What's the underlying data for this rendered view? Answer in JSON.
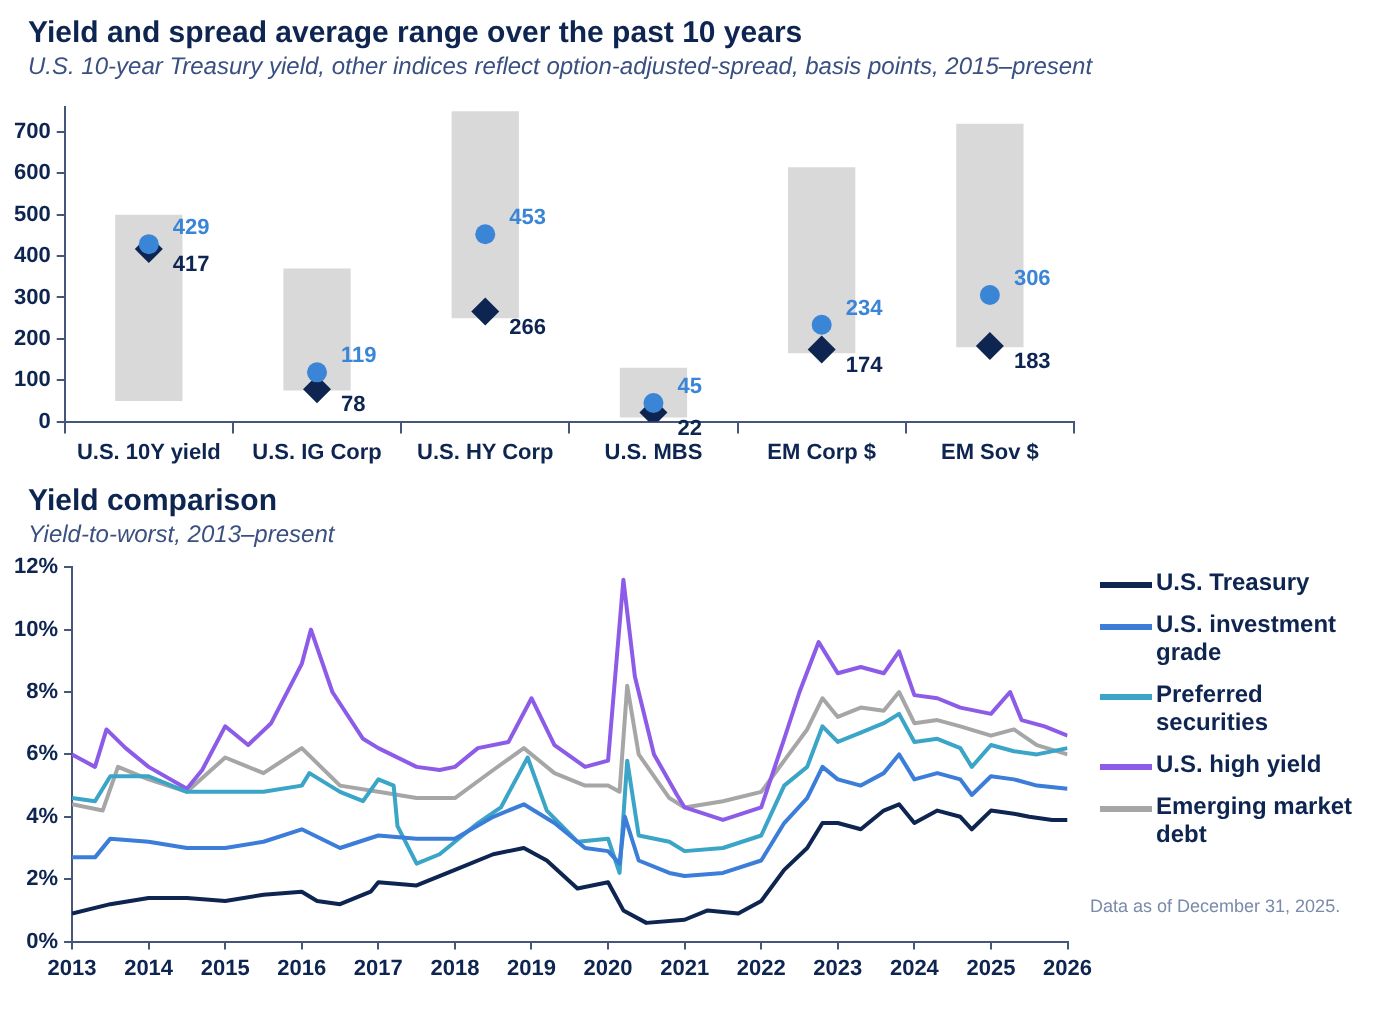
{
  "chart_data": [
    {
      "type": "bar",
      "title": "Yield and spread average range over the past 10 years",
      "subtitle": "U.S. 10-year Treasury yield, other indices reflect option-adjusted-spread, basis points, 2015–present",
      "categories": [
        "U.S. 10Y yield",
        "U.S. IG Corp",
        "U.S. HY Corp",
        "U.S. MBS",
        "EM Corp $",
        "EM Sov $"
      ],
      "ylim": [
        0,
        760
      ],
      "yticks": [
        0,
        100,
        200,
        300,
        400,
        500,
        600,
        700
      ],
      "grid": false,
      "legend": false,
      "series": [
        {
          "color": "#d9d9d9",
          "base": [
            50,
            75,
            250,
            10,
            165,
            180
          ],
          "values": [
            450,
            295,
            500,
            120,
            450,
            540
          ]
        },
        {
          "type": "scatter",
          "color": "#3a85d6",
          "marker": "circle",
          "data_labels": true,
          "x": [
            "U.S. 10Y yield",
            "U.S. IG Corp",
            "U.S. HY Corp",
            "U.S. MBS",
            "EM Corp $",
            "EM Sov $"
          ],
          "values": [
            429,
            119,
            453,
            45,
            234,
            306
          ]
        },
        {
          "type": "scatter",
          "color": "#0d2550",
          "marker": "diamond",
          "data_labels": true,
          "x": [
            "U.S. 10Y yield",
            "U.S. IG Corp",
            "U.S. HY Corp",
            "U.S. MBS",
            "EM Corp $",
            "EM Sov $"
          ],
          "values": [
            417,
            78,
            266,
            22,
            174,
            183
          ]
        }
      ]
    },
    {
      "type": "line",
      "title": "Yield comparison",
      "subtitle": "Yield-to-worst, 2013–present",
      "xlim": [
        2013,
        2026
      ],
      "xticks": [
        2013,
        2014,
        2015,
        2016,
        2017,
        2018,
        2019,
        2020,
        2021,
        2022,
        2023,
        2024,
        2025,
        2026
      ],
      "ylim": [
        0,
        12
      ],
      "yticks": [
        {
          "value": 0,
          "label": "0%"
        },
        {
          "value": 2,
          "label": "2%"
        },
        {
          "value": 4,
          "label": "4%"
        },
        {
          "value": 6,
          "label": "6%"
        },
        {
          "value": 8,
          "label": "8%"
        },
        {
          "value": 10,
          "label": "10%"
        },
        {
          "value": 12,
          "label": "12%"
        }
      ],
      "grid": false,
      "legend": "right",
      "marker": "none",
      "line_style": "solid",
      "annotations": [
        "Data as of December 31, 2025."
      ],
      "series": [
        {
          "name": "U.S. Treasury",
          "color": "#0d2550",
          "x": [
            2013,
            2013.5,
            2014,
            2014.5,
            2015,
            2015.5,
            2016,
            2016.2,
            2016.5,
            2016.9,
            2017,
            2017.5,
            2018,
            2018.5,
            2018.9,
            2019.2,
            2019.6,
            2020,
            2020.2,
            2020.5,
            2021,
            2021.3,
            2021.7,
            2022,
            2022.3,
            2022.6,
            2022.8,
            2023,
            2023.3,
            2023.6,
            2023.8,
            2024,
            2024.3,
            2024.6,
            2024.75,
            2025,
            2025.3,
            2025.5,
            2025.8,
            2026
          ],
          "values": [
            0.9,
            1.2,
            1.4,
            1.4,
            1.3,
            1.5,
            1.6,
            1.3,
            1.2,
            1.6,
            1.9,
            1.8,
            2.3,
            2.8,
            3.0,
            2.6,
            1.7,
            1.9,
            1.0,
            0.6,
            0.7,
            1.0,
            0.9,
            1.3,
            2.3,
            3.0,
            3.8,
            3.8,
            3.6,
            4.2,
            4.4,
            3.8,
            4.2,
            4.0,
            3.6,
            4.2,
            4.1,
            4.0,
            3.9,
            3.9
          ]
        },
        {
          "name": "U.S. investment grade",
          "color": "#3b7dd8",
          "x": [
            2013,
            2013.3,
            2013.5,
            2014,
            2014.5,
            2015,
            2015.5,
            2016,
            2016.5,
            2017,
            2017.5,
            2018,
            2018.5,
            2018.9,
            2019.3,
            2019.7,
            2020,
            2020.15,
            2020.22,
            2020.4,
            2020.8,
            2021,
            2021.5,
            2022,
            2022.3,
            2022.6,
            2022.8,
            2023,
            2023.3,
            2023.6,
            2023.8,
            2024,
            2024.3,
            2024.6,
            2024.75,
            2025,
            2025.3,
            2025.6,
            2026
          ],
          "values": [
            2.7,
            2.7,
            3.3,
            3.2,
            3.0,
            3.0,
            3.2,
            3.6,
            3.0,
            3.4,
            3.3,
            3.3,
            4.0,
            4.4,
            3.8,
            3.0,
            2.9,
            2.5,
            4.0,
            2.6,
            2.2,
            2.1,
            2.2,
            2.6,
            3.8,
            4.6,
            5.6,
            5.2,
            5.0,
            5.4,
            6.0,
            5.2,
            5.4,
            5.2,
            4.7,
            5.3,
            5.2,
            5.0,
            4.9
          ]
        },
        {
          "name": "Preferred securities",
          "color": "#3aa5c6",
          "x": [
            2013,
            2013.3,
            2013.5,
            2014,
            2014.5,
            2015,
            2015.5,
            2016,
            2016.1,
            2016.5,
            2016.8,
            2017,
            2017.2,
            2017.25,
            2017.5,
            2017.8,
            2018,
            2018.3,
            2018.6,
            2018.95,
            2019.2,
            2019.6,
            2020,
            2020.15,
            2020.25,
            2020.4,
            2020.8,
            2021,
            2021.5,
            2022,
            2022.3,
            2022.6,
            2022.8,
            2023,
            2023.3,
            2023.6,
            2023.8,
            2024,
            2024.3,
            2024.6,
            2024.75,
            2025,
            2025.3,
            2025.6,
            2026
          ],
          "values": [
            4.6,
            4.5,
            5.3,
            5.3,
            4.8,
            4.8,
            4.8,
            5.0,
            5.4,
            4.8,
            4.5,
            5.2,
            5.0,
            3.7,
            2.5,
            2.8,
            3.2,
            3.8,
            4.3,
            5.9,
            4.2,
            3.2,
            3.3,
            2.2,
            5.8,
            3.4,
            3.2,
            2.9,
            3.0,
            3.4,
            5.0,
            5.6,
            6.9,
            6.4,
            6.7,
            7.0,
            7.3,
            6.4,
            6.5,
            6.2,
            5.6,
            6.3,
            6.1,
            6.0,
            6.2
          ]
        },
        {
          "name": "U.S. high yield",
          "color": "#8c5ce8",
          "x": [
            2013,
            2013.3,
            2013.45,
            2013.7,
            2014,
            2014.5,
            2014.7,
            2015,
            2015.3,
            2015.6,
            2016,
            2016.12,
            2016.4,
            2016.8,
            2017,
            2017.5,
            2017.8,
            2018,
            2018.3,
            2018.7,
            2019,
            2019.3,
            2019.7,
            2020,
            2020.2,
            2020.35,
            2020.6,
            2020.9,
            2021,
            2021.5,
            2022,
            2022.3,
            2022.5,
            2022.75,
            2023,
            2023.3,
            2023.6,
            2023.8,
            2024,
            2024.3,
            2024.6,
            2025,
            2025.25,
            2025.4,
            2025.7,
            2026
          ],
          "values": [
            6.0,
            5.6,
            6.8,
            6.2,
            5.6,
            4.9,
            5.5,
            6.9,
            6.3,
            7.0,
            8.9,
            10.0,
            8.0,
            6.5,
            6.2,
            5.6,
            5.5,
            5.6,
            6.2,
            6.4,
            7.8,
            6.3,
            5.6,
            5.8,
            11.6,
            8.5,
            6.0,
            4.7,
            4.3,
            3.9,
            4.3,
            6.5,
            8.0,
            9.6,
            8.6,
            8.8,
            8.6,
            9.3,
            7.9,
            7.8,
            7.5,
            7.3,
            8.0,
            7.1,
            6.9,
            6.6
          ]
        },
        {
          "name": "Emerging market debt",
          "color": "#a6a6a6",
          "x": [
            2013,
            2013.4,
            2013.6,
            2014,
            2014.5,
            2015,
            2015.5,
            2016,
            2016.5,
            2017,
            2017.5,
            2018,
            2018.5,
            2018.9,
            2019.3,
            2019.7,
            2020,
            2020.15,
            2020.25,
            2020.4,
            2020.8,
            2021,
            2021.5,
            2022,
            2022.3,
            2022.6,
            2022.8,
            2023,
            2023.3,
            2023.6,
            2023.8,
            2024,
            2024.3,
            2024.6,
            2025,
            2025.3,
            2025.6,
            2026
          ],
          "values": [
            4.4,
            4.2,
            5.6,
            5.2,
            4.8,
            5.9,
            5.4,
            6.2,
            5.0,
            4.8,
            4.6,
            4.6,
            5.5,
            6.2,
            5.4,
            5.0,
            5.0,
            4.8,
            8.2,
            6.0,
            4.6,
            4.3,
            4.5,
            4.8,
            5.8,
            6.8,
            7.8,
            7.2,
            7.5,
            7.4,
            8.0,
            7.0,
            7.1,
            6.9,
            6.6,
            6.8,
            6.3,
            6.0
          ]
        }
      ]
    }
  ]
}
